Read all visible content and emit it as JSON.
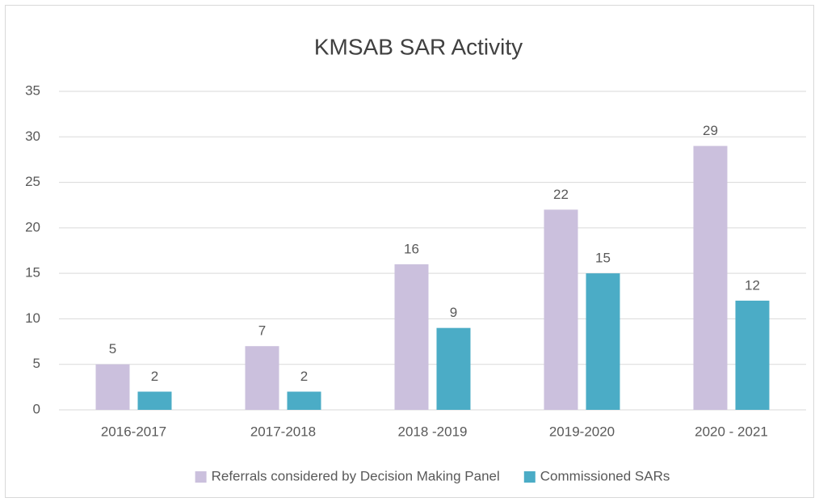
{
  "chart_data": {
    "type": "bar",
    "title": "KMSAB SAR Activity",
    "categories": [
      "2016-2017",
      "2017-2018",
      "2018 -2019",
      "2019-2020",
      "2020 - 2021"
    ],
    "series": [
      {
        "name": "Referrals considered by Decision Making Panel",
        "color": "#cbc0dd",
        "values": [
          5,
          7,
          16,
          22,
          29
        ]
      },
      {
        "name": "Commissioned SARs",
        "color": "#4bacc6",
        "values": [
          2,
          2,
          9,
          15,
          12
        ]
      }
    ],
    "ylim": [
      0,
      35
    ],
    "yticks": [
      0,
      5,
      10,
      15,
      20,
      25,
      30,
      35
    ],
    "grid": true,
    "legend": "bottom"
  }
}
